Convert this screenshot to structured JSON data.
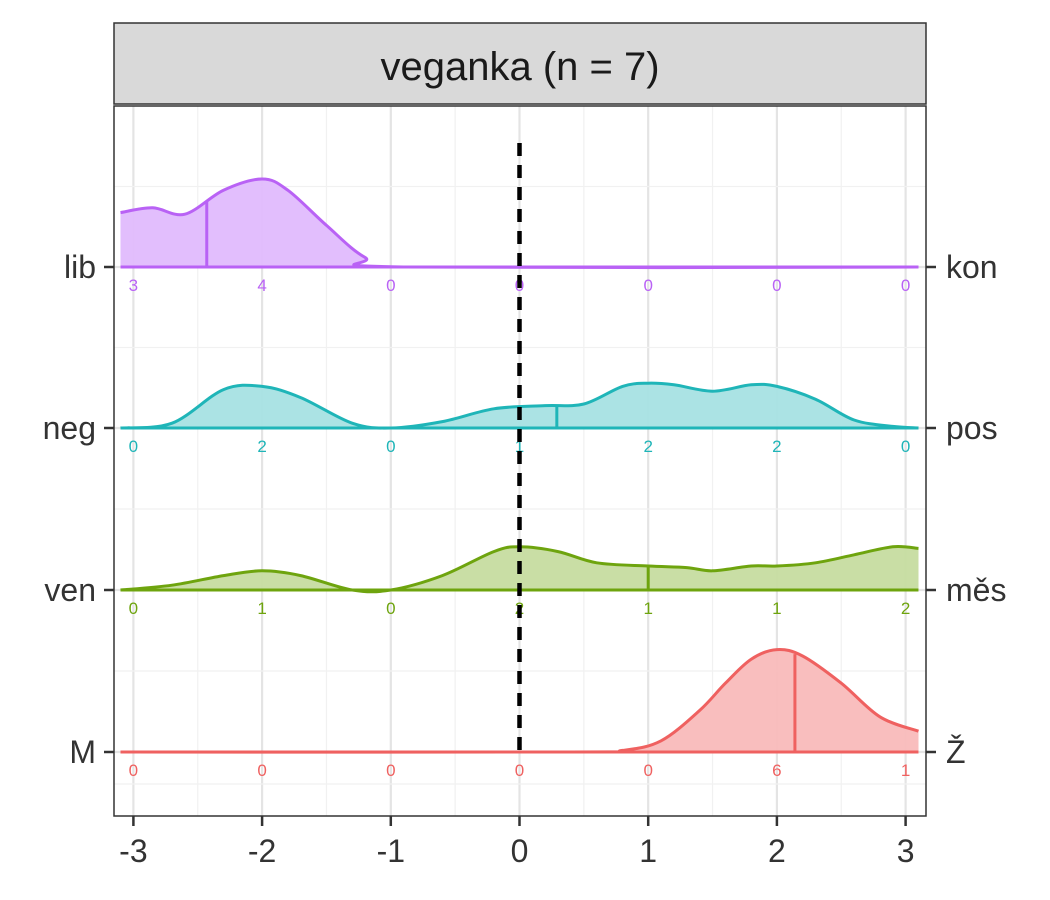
{
  "chart_data": {
    "type": "area",
    "title": "veganka (n = 7)",
    "xlabel": "",
    "ylabel": "",
    "xlim": [
      -3.1,
      3.1
    ],
    "x_ticks": [
      "-3",
      "-2",
      "-1",
      "0",
      "1",
      "2",
      "3"
    ],
    "reference_line_x": 0,
    "grid": true,
    "categories_left": [
      "lib",
      "neg",
      "ven",
      "M"
    ],
    "categories_right": [
      "kon",
      "pos",
      "měs",
      "Ž"
    ],
    "count_positions": [
      -3,
      -2,
      -1,
      0,
      1,
      2,
      3
    ],
    "series": [
      {
        "left_label": "lib",
        "right_label": "kon",
        "color": "#b962f5",
        "fill": "#e0bbfd",
        "counts": [
          "3",
          "4",
          "0",
          "0",
          "0",
          "0",
          "0"
        ],
        "mean": -2.43,
        "curve": [
          [
            -3.1,
            0.34
          ],
          [
            -2.85,
            0.37
          ],
          [
            -2.6,
            0.33
          ],
          [
            -2.3,
            0.48
          ],
          [
            -2.0,
            0.55
          ],
          [
            -1.8,
            0.48
          ],
          [
            -1.5,
            0.26
          ],
          [
            -1.2,
            0.06
          ],
          [
            -0.9,
            0.0
          ],
          [
            3.1,
            0.0
          ]
        ]
      },
      {
        "left_label": "neg",
        "right_label": "pos",
        "color": "#1fb5b8",
        "fill": "#a6e2e3",
        "counts": [
          "0",
          "2",
          "0",
          "1",
          "2",
          "2",
          "0"
        ],
        "mean": 0.29,
        "curve": [
          [
            -3.1,
            0.0
          ],
          [
            -2.7,
            0.03
          ],
          [
            -2.3,
            0.24
          ],
          [
            -2.0,
            0.26
          ],
          [
            -1.7,
            0.19
          ],
          [
            -1.3,
            0.03
          ],
          [
            -1.0,
            0.0
          ],
          [
            -0.6,
            0.04
          ],
          [
            -0.2,
            0.12
          ],
          [
            0.2,
            0.14
          ],
          [
            0.5,
            0.15
          ],
          [
            0.8,
            0.26
          ],
          [
            1.0,
            0.28
          ],
          [
            1.2,
            0.27
          ],
          [
            1.5,
            0.23
          ],
          [
            1.8,
            0.27
          ],
          [
            2.0,
            0.26
          ],
          [
            2.3,
            0.18
          ],
          [
            2.6,
            0.05
          ],
          [
            2.9,
            0.01
          ],
          [
            3.1,
            0.0
          ]
        ]
      },
      {
        "left_label": "ven",
        "right_label": "měs",
        "color": "#6ea40e",
        "fill": "#c6dca0",
        "counts": [
          "0",
          "1",
          "0",
          "2",
          "1",
          "1",
          "2"
        ],
        "mean": 1.0,
        "curve": [
          [
            -3.1,
            0.0
          ],
          [
            -2.7,
            0.03
          ],
          [
            -2.3,
            0.09
          ],
          [
            -2.0,
            0.12
          ],
          [
            -1.7,
            0.09
          ],
          [
            -1.3,
            0.0
          ],
          [
            -1.0,
            0.0
          ],
          [
            -0.6,
            0.09
          ],
          [
            -0.2,
            0.24
          ],
          [
            0.0,
            0.27
          ],
          [
            0.3,
            0.24
          ],
          [
            0.6,
            0.17
          ],
          [
            1.0,
            0.15
          ],
          [
            1.3,
            0.14
          ],
          [
            1.5,
            0.12
          ],
          [
            1.8,
            0.15
          ],
          [
            2.0,
            0.15
          ],
          [
            2.3,
            0.17
          ],
          [
            2.6,
            0.22
          ],
          [
            2.9,
            0.27
          ],
          [
            3.1,
            0.26
          ]
        ]
      },
      {
        "left_label": "M",
        "right_label": "Ž",
        "color": "#ef6160",
        "fill": "#f9baba",
        "counts": [
          "0",
          "0",
          "0",
          "0",
          "0",
          "6",
          "1"
        ],
        "mean": 2.14,
        "curve": [
          [
            -3.1,
            0.0
          ],
          [
            0.4,
            0.0
          ],
          [
            0.8,
            0.01
          ],
          [
            1.1,
            0.07
          ],
          [
            1.4,
            0.26
          ],
          [
            1.6,
            0.43
          ],
          [
            1.8,
            0.58
          ],
          [
            2.0,
            0.64
          ],
          [
            2.2,
            0.6
          ],
          [
            2.5,
            0.43
          ],
          [
            2.8,
            0.22
          ],
          [
            3.1,
            0.13
          ]
        ]
      }
    ]
  }
}
